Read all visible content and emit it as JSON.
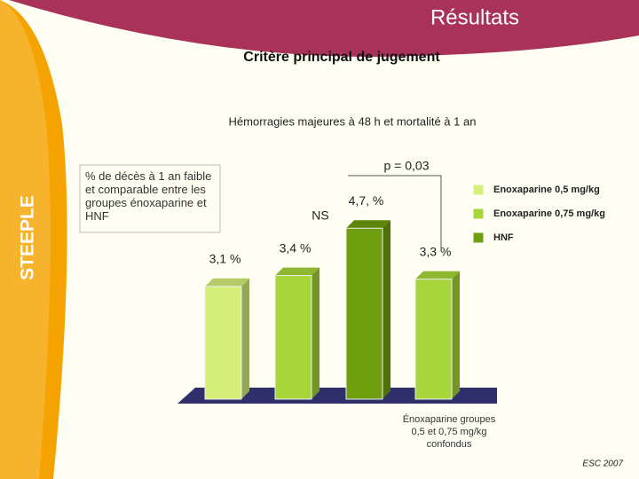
{
  "header": {
    "title": "Résultats",
    "subtitle": "Critère principal de jugement",
    "side_label": "STEEPLE",
    "footer": "ESC 2007"
  },
  "chart_data": {
    "type": "bar",
    "title": "Hémorragies majeures à 48 h et mortalité à 1 an",
    "annotation": "% de décès à 1 an faible et comparable entre les groupes énoxaparine et HNF",
    "categories": [
      null,
      null,
      null,
      "Énoxaparine groupes 0,5 et 0,75 mg/kg confondus"
    ],
    "values": [
      3.1,
      3.4,
      4.7,
      3.3
    ],
    "value_labels": [
      "3,1 %",
      "3,4 %",
      "4,7, %",
      "3,3 %"
    ],
    "colors": [
      "#d4ef7a",
      "#a6d63a",
      "#6f9e0e",
      "#a6d63a"
    ],
    "legend": [
      {
        "name": "Enoxaparine 0,5 mg/kg",
        "color": "#d4ef7a"
      },
      {
        "name": "Enoxaparine 0,75 mg/kg",
        "color": "#a6d63a"
      },
      {
        "name": "HNF",
        "color": "#6f9e0e"
      }
    ],
    "comparisons": [
      {
        "label": "NS"
      },
      {
        "label": "p = 0,03"
      }
    ]
  }
}
